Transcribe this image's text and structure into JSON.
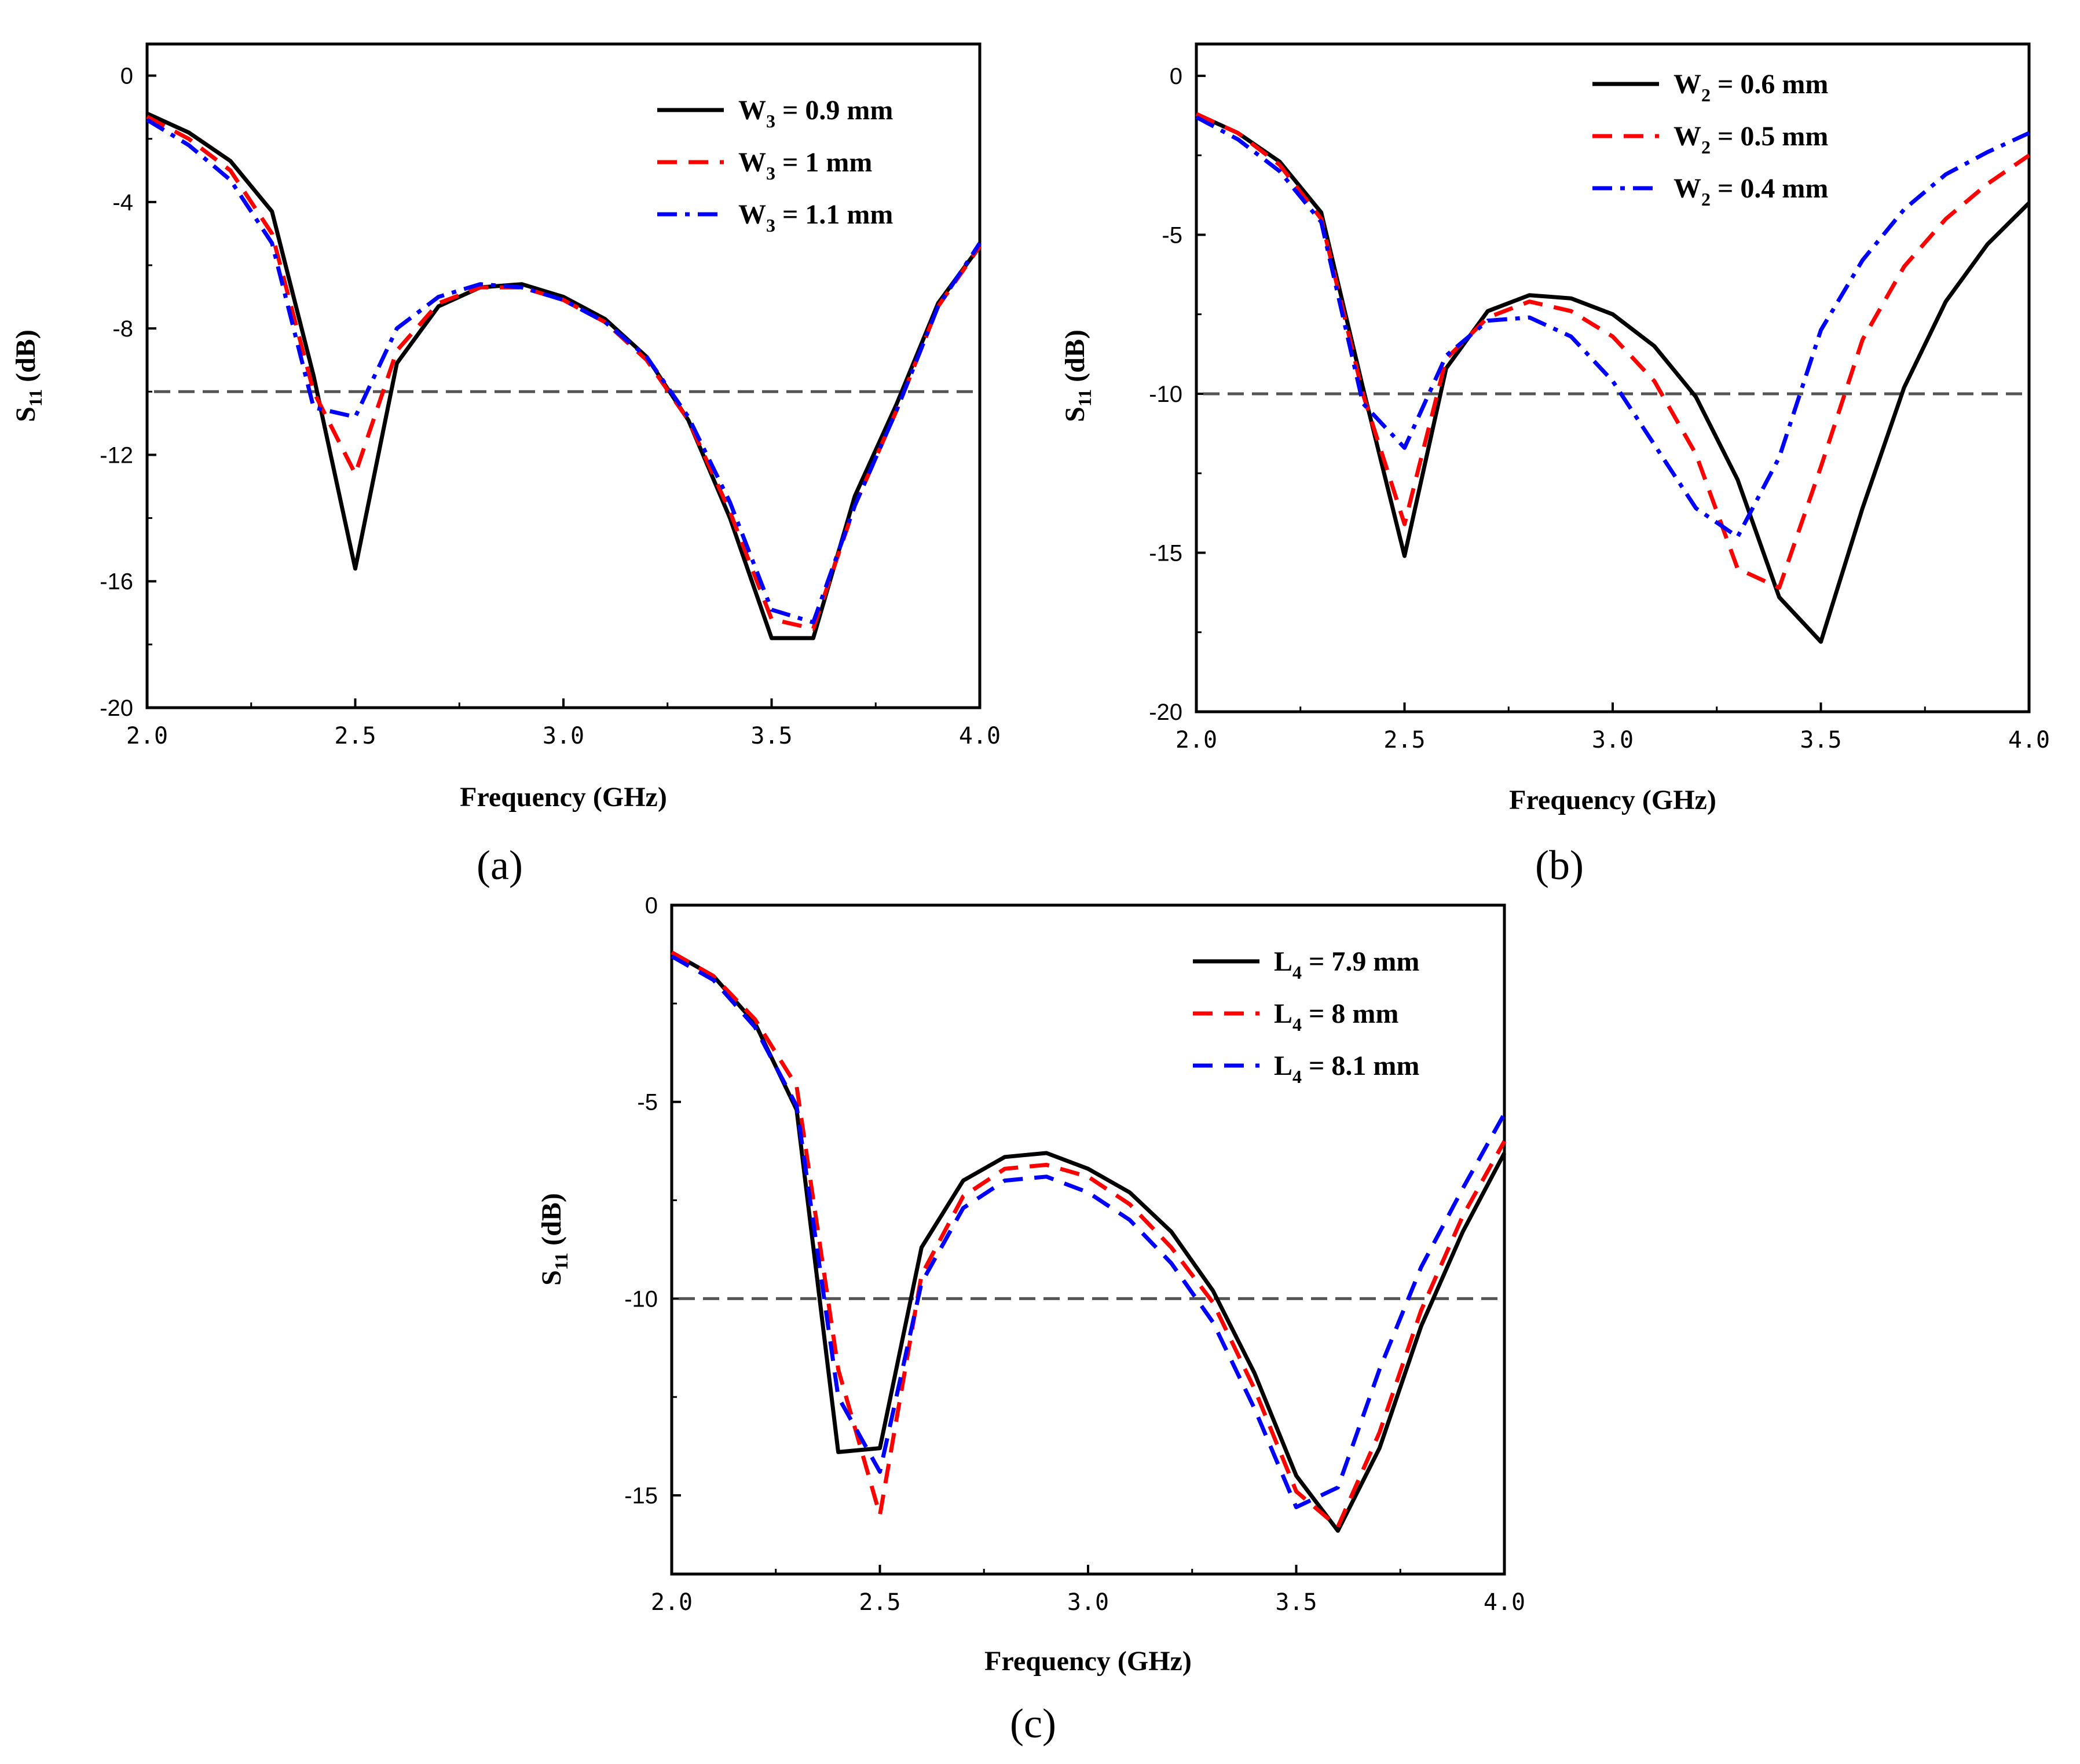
{
  "chart_data": [
    {
      "id": "a",
      "type": "line",
      "panel_label": "(a)",
      "xlabel": "Frequency (GHz)",
      "ylabel": {
        "main": "S",
        "sub": "11",
        "unit": " (dB)"
      },
      "xlim": [
        2.0,
        4.0
      ],
      "ylim": [
        -20,
        1
      ],
      "xticks": [
        2.0,
        2.5,
        3.0,
        3.5,
        4.0
      ],
      "xtick_labels": [
        "2.0",
        "2.5",
        "3.0",
        "3.5",
        "4.0"
      ],
      "yticks": [
        0,
        -4,
        -8,
        -12,
        -16,
        -20
      ],
      "ytick_labels": [
        "0",
        "-4",
        "-8",
        "-12",
        "-16",
        "-20"
      ],
      "reference_line": -10,
      "legend_position": "top-right",
      "series": [
        {
          "name": "W3 = 0.9 mm",
          "legend": {
            "pre": "W",
            "sub": "3",
            "post": " = 0.9 mm"
          },
          "color": "#000000",
          "style": "solid",
          "x": [
            2.0,
            2.1,
            2.2,
            2.3,
            2.4,
            2.5,
            2.6,
            2.7,
            2.8,
            2.9,
            3.0,
            3.1,
            3.2,
            3.3,
            3.4,
            3.5,
            3.6,
            3.7,
            3.8,
            3.9,
            4.0
          ],
          "y": [
            -1.2,
            -1.8,
            -2.7,
            -4.3,
            -9.5,
            -15.6,
            -9.1,
            -7.3,
            -6.7,
            -6.6,
            -7.0,
            -7.7,
            -8.9,
            -10.9,
            -14.0,
            -17.8,
            -17.8,
            -13.3,
            -10.4,
            -7.2,
            -5.4
          ]
        },
        {
          "name": "W3 = 1 mm",
          "legend": {
            "pre": "W",
            "sub": "3",
            "post": " = 1 mm"
          },
          "color": "#ff0000",
          "style": "dash",
          "x": [
            2.0,
            2.1,
            2.2,
            2.3,
            2.4,
            2.5,
            2.6,
            2.7,
            2.8,
            2.9,
            3.0,
            3.1,
            3.2,
            3.3,
            3.4,
            3.5,
            3.6,
            3.7,
            3.8,
            3.9,
            4.0
          ],
          "y": [
            -1.3,
            -2.0,
            -3.0,
            -5.0,
            -10.0,
            -12.6,
            -8.7,
            -7.2,
            -6.7,
            -6.7,
            -7.1,
            -7.8,
            -9.0,
            -10.9,
            -13.8,
            -17.2,
            -17.5,
            -13.6,
            -10.6,
            -7.3,
            -5.4
          ]
        },
        {
          "name": "W3 = 1.1 mm",
          "legend": {
            "pre": "W",
            "sub": "3",
            "post": " = 1.1 mm"
          },
          "color": "#0000ff",
          "style": "dashdot",
          "x": [
            2.0,
            2.1,
            2.2,
            2.3,
            2.4,
            2.5,
            2.6,
            2.7,
            2.8,
            2.9,
            3.0,
            3.1,
            3.2,
            3.3,
            3.4,
            3.5,
            3.6,
            3.7,
            3.8,
            3.9,
            4.0
          ],
          "y": [
            -1.4,
            -2.2,
            -3.3,
            -5.3,
            -10.5,
            -10.8,
            -8.0,
            -7.0,
            -6.6,
            -6.7,
            -7.1,
            -7.8,
            -8.9,
            -10.8,
            -13.5,
            -16.9,
            -17.3,
            -13.6,
            -10.6,
            -7.3,
            -5.3
          ]
        }
      ]
    },
    {
      "id": "b",
      "type": "line",
      "panel_label": "(b)",
      "xlabel": "Frequency (GHz)",
      "ylabel": {
        "main": "S",
        "sub": "11",
        "unit": " (dB)"
      },
      "xlim": [
        2.0,
        4.0
      ],
      "ylim": [
        -20,
        1
      ],
      "xticks": [
        2.0,
        2.5,
        3.0,
        3.5,
        4.0
      ],
      "xtick_labels": [
        "2.0",
        "2.5",
        "3.0",
        "3.5",
        "4.0"
      ],
      "yticks": [
        0,
        -5,
        -10,
        -15,
        -20
      ],
      "ytick_labels": [
        "0",
        "-5",
        "-10",
        "-15",
        "-20"
      ],
      "reference_line": -10,
      "legend_position": "top-right",
      "series": [
        {
          "name": "W2 = 0.6 mm",
          "legend": {
            "pre": "W",
            "sub": "2",
            "post": " = 0.6 mm"
          },
          "color": "#000000",
          "style": "solid",
          "x": [
            2.0,
            2.1,
            2.2,
            2.3,
            2.4,
            2.5,
            2.6,
            2.7,
            2.8,
            2.9,
            3.0,
            3.1,
            3.2,
            3.3,
            3.4,
            3.5,
            3.6,
            3.7,
            3.8,
            3.9,
            4.0
          ],
          "y": [
            -1.2,
            -1.8,
            -2.7,
            -4.3,
            -9.8,
            -15.1,
            -9.2,
            -7.4,
            -6.9,
            -7.0,
            -7.5,
            -8.5,
            -10.1,
            -12.7,
            -16.4,
            -17.8,
            -13.6,
            -9.8,
            -7.1,
            -5.3,
            -4.0
          ]
        },
        {
          "name": "W2 = 0.5 mm",
          "legend": {
            "pre": "W",
            "sub": "2",
            "post": " = 0.5 mm"
          },
          "color": "#ff0000",
          "style": "dash",
          "x": [
            2.0,
            2.1,
            2.2,
            2.3,
            2.4,
            2.5,
            2.6,
            2.7,
            2.8,
            2.9,
            3.0,
            3.1,
            3.2,
            3.3,
            3.4,
            3.5,
            3.6,
            3.7,
            3.8,
            3.9,
            4.0
          ],
          "y": [
            -1.2,
            -1.8,
            -2.8,
            -4.5,
            -10.0,
            -14.1,
            -8.9,
            -7.6,
            -7.1,
            -7.4,
            -8.2,
            -9.6,
            -11.9,
            -15.5,
            -16.1,
            -12.3,
            -8.3,
            -6.0,
            -4.5,
            -3.4,
            -2.5
          ]
        },
        {
          "name": "W2 = 0.4 mm",
          "legend": {
            "pre": "W",
            "sub": "2",
            "post": " = 0.4 mm"
          },
          "color": "#0000ff",
          "style": "dashdot",
          "x": [
            2.0,
            2.1,
            2.2,
            2.3,
            2.4,
            2.5,
            2.6,
            2.7,
            2.8,
            2.9,
            3.0,
            3.1,
            3.2,
            3.3,
            3.4,
            3.5,
            3.6,
            3.7,
            3.8,
            3.9,
            4.0
          ],
          "y": [
            -1.3,
            -2.0,
            -3.0,
            -4.6,
            -10.3,
            -11.7,
            -8.8,
            -7.7,
            -7.6,
            -8.2,
            -9.6,
            -11.6,
            -13.6,
            -14.5,
            -12.0,
            -8.0,
            -5.8,
            -4.2,
            -3.1,
            -2.4,
            -1.8
          ]
        }
      ]
    },
    {
      "id": "c",
      "type": "line",
      "panel_label": "(c)",
      "xlabel": "Frequency (GHz)",
      "ylabel": {
        "main": "S",
        "sub": "11",
        "unit": " (dB)"
      },
      "xlim": [
        2.0,
        4.0
      ],
      "ylim": [
        -17,
        0
      ],
      "xticks": [
        2.0,
        2.5,
        3.0,
        3.5,
        4.0
      ],
      "xtick_labels": [
        "2.0",
        "2.5",
        "3.0",
        "3.5",
        "4.0"
      ],
      "yticks": [
        0,
        -5,
        -10,
        -15
      ],
      "ytick_labels": [
        "0",
        "-5",
        "-10",
        "-15"
      ],
      "reference_line": -10,
      "legend_position": "top-right",
      "series": [
        {
          "name": "L4 = 7.9 mm",
          "legend": {
            "pre": "L",
            "sub": "4",
            "post": " = 7.9 mm"
          },
          "color": "#000000",
          "style": "solid",
          "x": [
            2.0,
            2.1,
            2.2,
            2.3,
            2.4,
            2.5,
            2.6,
            2.7,
            2.8,
            2.9,
            3.0,
            3.1,
            3.2,
            3.3,
            3.4,
            3.5,
            3.6,
            3.7,
            3.8,
            3.9,
            4.0
          ],
          "y": [
            -1.2,
            -1.8,
            -3.0,
            -5.2,
            -13.9,
            -13.8,
            -8.7,
            -7.0,
            -6.4,
            -6.3,
            -6.7,
            -7.3,
            -8.3,
            -9.8,
            -11.9,
            -14.5,
            -15.9,
            -13.8,
            -10.7,
            -8.3,
            -6.3
          ]
        },
        {
          "name": "L4 = 8 mm",
          "legend": {
            "pre": "L",
            "sub": "4",
            "post": " = 8 mm"
          },
          "color": "#ff0000",
          "style": "dash",
          "x": [
            2.0,
            2.1,
            2.2,
            2.3,
            2.4,
            2.5,
            2.6,
            2.7,
            2.8,
            2.9,
            3.0,
            3.1,
            3.2,
            3.3,
            3.4,
            3.5,
            3.6,
            3.7,
            3.8,
            3.9,
            4.0
          ],
          "y": [
            -1.2,
            -1.8,
            -2.9,
            -4.6,
            -11.8,
            -15.5,
            -9.4,
            -7.4,
            -6.7,
            -6.6,
            -6.9,
            -7.6,
            -8.7,
            -10.1,
            -12.3,
            -14.9,
            -15.8,
            -13.4,
            -10.3,
            -7.9,
            -6.0
          ]
        },
        {
          "name": "L4 = 8.1 mm",
          "legend": {
            "pre": "L",
            "sub": "4",
            "post": " = 8.1 mm"
          },
          "color": "#0000ff",
          "style": "dash",
          "x": [
            2.0,
            2.1,
            2.2,
            2.3,
            2.4,
            2.5,
            2.6,
            2.7,
            2.8,
            2.9,
            3.0,
            3.1,
            3.2,
            3.3,
            3.4,
            3.5,
            3.6,
            3.7,
            3.8,
            3.9,
            4.0
          ],
          "y": [
            -1.3,
            -1.9,
            -3.1,
            -5.1,
            -12.5,
            -14.4,
            -9.6,
            -7.7,
            -7.0,
            -6.9,
            -7.3,
            -8.0,
            -9.1,
            -10.6,
            -12.8,
            -15.3,
            -14.8,
            -11.8,
            -9.2,
            -7.2,
            -5.3
          ]
        }
      ]
    }
  ]
}
